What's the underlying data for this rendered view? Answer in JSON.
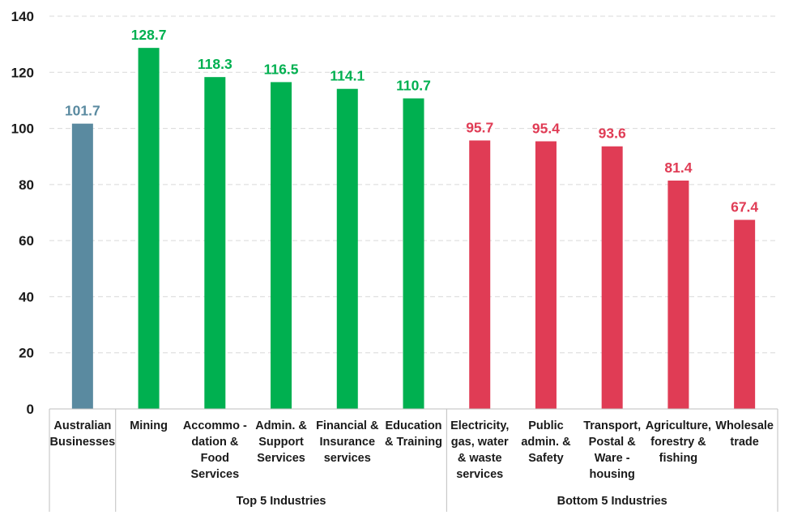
{
  "chart_data": {
    "type": "bar",
    "ylim": [
      0,
      140
    ],
    "yticks": [
      0,
      20,
      40,
      60,
      80,
      100,
      120,
      140
    ],
    "grid": true,
    "categories": [
      [
        "Australian",
        "Businesses"
      ],
      [
        "Mining"
      ],
      [
        "Accommo -",
        "dation &",
        "Food",
        "Services"
      ],
      [
        "Admin. &",
        "Support",
        "Services"
      ],
      [
        "Financial &",
        "Insurance",
        "services"
      ],
      [
        "Education",
        "& Training"
      ],
      [
        "Electricity,",
        "gas, water",
        "& waste",
        "services"
      ],
      [
        "Public",
        "admin. &",
        "Safety"
      ],
      [
        "Transport,",
        "Postal &",
        "Ware -",
        "housing"
      ],
      [
        "Agriculture,",
        "forestry &",
        "fishing"
      ],
      [
        "Wholesale",
        "trade"
      ]
    ],
    "values": [
      101.7,
      128.7,
      118.3,
      116.5,
      114.1,
      110.7,
      95.7,
      95.4,
      93.6,
      81.4,
      67.4
    ],
    "value_labels": [
      "101.7",
      "128.7",
      "118.3",
      "116.5",
      "114.1",
      "110.7",
      "95.7",
      "95.4",
      "93.6",
      "81.4",
      "67.4"
    ],
    "groups": [
      {
        "label": "",
        "start": 0,
        "end": 0
      },
      {
        "label": "Top 5 Industries",
        "start": 1,
        "end": 5
      },
      {
        "label": "Bottom 5 Industries",
        "start": 6,
        "end": 10
      }
    ],
    "bar_colors": [
      "#5a8aa0",
      "#00b050",
      "#00b050",
      "#00b050",
      "#00b050",
      "#00b050",
      "#e03c55",
      "#e03c55",
      "#e03c55",
      "#e03c55",
      "#e03c55"
    ]
  }
}
